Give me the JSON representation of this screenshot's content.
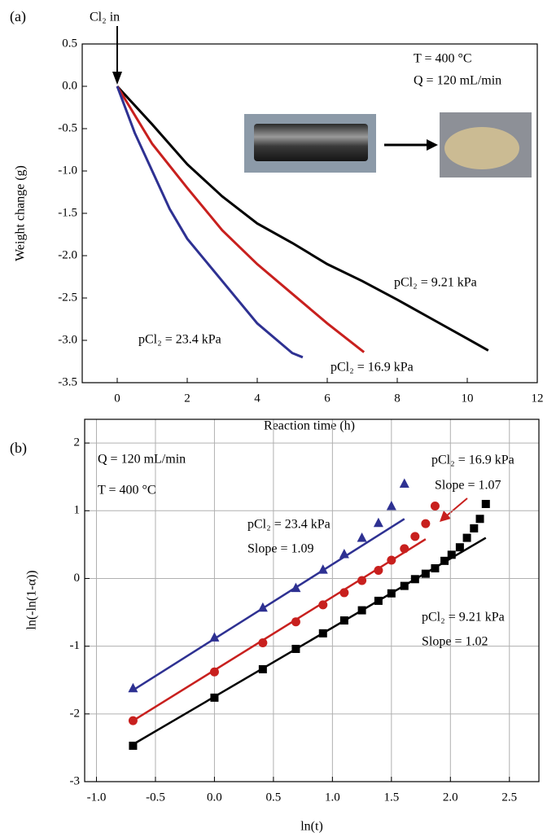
{
  "chart_data": [
    {
      "type": "line",
      "panel_label": "(a)",
      "x_label": "Reaction time (h)",
      "y_label": "Weight change (g)",
      "xlim": [
        -1,
        12
      ],
      "xticks": [
        0,
        2,
        4,
        6,
        8,
        10,
        12
      ],
      "ylim": [
        -3.5,
        0.5
      ],
      "yticks": [
        0.5,
        {
          "value": 0,
          "label": "0.0"
        },
        -0.5,
        {
          "value": -1,
          "label": "-1.0"
        },
        -1.5,
        {
          "value": -2,
          "label": "-2.0"
        },
        -2.5,
        {
          "value": -3,
          "label": "-3.0"
        },
        -3.5
      ],
      "grid": false,
      "annotations": [
        "Cl₂ in",
        "T = 400 °C",
        "Q = 120 mL/min"
      ],
      "series": [
        {
          "name": "pCl₂ = 9.21 kPa",
          "color": "#000000",
          "x": [
            0,
            1,
            2,
            3,
            4,
            5,
            6,
            7,
            8,
            9,
            10,
            10.6
          ],
          "values": [
            0,
            -0.45,
            -0.92,
            -1.3,
            -1.62,
            -1.85,
            -2.1,
            -2.3,
            -2.52,
            -2.75,
            -2.98,
            -3.12
          ]
        },
        {
          "name": "pCl₂ = 16.9 kPa",
          "color": "#c8201e",
          "x": [
            0,
            1,
            2,
            3,
            4,
            5,
            6,
            7.05
          ],
          "values": [
            0,
            -0.68,
            -1.2,
            -1.7,
            -2.1,
            -2.45,
            -2.8,
            -3.14
          ]
        },
        {
          "name": "pCl₂ = 23.4 kPa",
          "color": "#2e3192",
          "x": [
            0,
            0.5,
            1,
            1.5,
            2,
            3,
            4,
            5,
            5.3
          ],
          "values": [
            0,
            -0.55,
            -1.0,
            -1.45,
            -1.8,
            -2.3,
            -2.8,
            -3.15,
            -3.2
          ]
        }
      ]
    },
    {
      "type": "scatter",
      "panel_label": "(b)",
      "x_label": "ln(t)",
      "y_label": "ln(-ln(1-α))",
      "xlim": [
        -1.1,
        2.75
      ],
      "xticks": [
        {
          "value": -1,
          "label": "-1.0"
        },
        -0.5,
        {
          "value": 0,
          "label": "0.0"
        },
        0.5,
        {
          "value": 1,
          "label": "1.0"
        },
        1.5,
        {
          "value": 2,
          "label": "2.0"
        },
        2.5
      ],
      "ylim": [
        -3,
        2.35
      ],
      "yticks": [
        -3,
        -2,
        -1,
        0,
        1,
        2
      ],
      "grid": true,
      "annotations": [
        "Q = 120 mL/min",
        "T = 400 °C"
      ],
      "series": [
        {
          "name": "pCl₂ = 23.4 kPa",
          "slope_label": "Slope = 1.09",
          "color": "#2e3192",
          "marker": "triangle",
          "x": [
            -0.69,
            0,
            0.41,
            0.69,
            0.92,
            1.1,
            1.25,
            1.39,
            1.5,
            1.61
          ],
          "values": [
            -1.62,
            -0.87,
            -0.43,
            -0.14,
            0.13,
            0.36,
            0.6,
            0.82,
            1.07,
            1.4
          ],
          "fit_x": [
            -0.69,
            1.61
          ],
          "fit_y": [
            -1.65,
            0.88
          ]
        },
        {
          "name": "pCl₂ = 16.9 kPa",
          "slope_label": "Slope = 1.07",
          "color": "#c8201e",
          "marker": "circle",
          "x": [
            -0.69,
            0,
            0.41,
            0.69,
            0.92,
            1.1,
            1.25,
            1.39,
            1.5,
            1.61,
            1.7,
            1.79,
            1.87
          ],
          "values": [
            -2.1,
            -1.38,
            -0.95,
            -0.64,
            -0.39,
            -0.21,
            -0.03,
            0.12,
            0.27,
            0.44,
            0.62,
            0.81,
            1.07
          ],
          "fit_x": [
            -0.69,
            1.79
          ],
          "fit_y": [
            -2.1,
            0.58
          ]
        },
        {
          "name": "pCl₂ = 9.21 kPa",
          "slope_label": "Slope = 1.02",
          "color": "#000000",
          "marker": "square",
          "x": [
            -0.69,
            0,
            0.41,
            0.69,
            0.92,
            1.1,
            1.25,
            1.39,
            1.5,
            1.61,
            1.7,
            1.79,
            1.87,
            1.95,
            2.01,
            2.08,
            2.14,
            2.2,
            2.25,
            2.3
          ],
          "values": [
            -2.47,
            -1.76,
            -1.34,
            -1.04,
            -0.81,
            -0.62,
            -0.47,
            -0.33,
            -0.22,
            -0.11,
            -0.01,
            0.07,
            0.15,
            0.26,
            0.35,
            0.46,
            0.6,
            0.74,
            0.88,
            1.1
          ],
          "fit_x": [
            -0.69,
            2.3
          ],
          "fit_y": [
            -2.45,
            0.6
          ]
        }
      ]
    }
  ]
}
